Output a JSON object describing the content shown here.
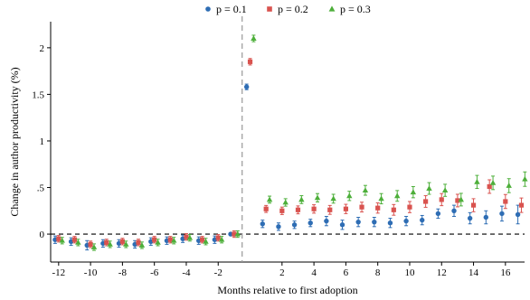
{
  "chart_data": {
    "type": "scatter",
    "title": "",
    "xlabel": "Months relative to first adoption",
    "ylabel": "Change in author productivity (%)",
    "xlim": [
      -12.5,
      17.2
    ],
    "ylim": [
      -0.3,
      2.28
    ],
    "x_ticks": [
      -12,
      -10,
      -8,
      -6,
      -4,
      -2,
      2,
      4,
      6,
      8,
      10,
      12,
      14,
      16
    ],
    "x_tick_labels": [
      "-12",
      "-10",
      "-8",
      "-6",
      "-4",
      "-2",
      "2",
      "4",
      "6",
      "8",
      "10",
      "12",
      "14",
      "16"
    ],
    "y_ticks": [
      0,
      0.5,
      1,
      1.5,
      2
    ],
    "y_tick_labels": [
      "0",
      ".5",
      "1",
      "1.5",
      "2"
    ],
    "reference_lines": {
      "horizontal_y": 0,
      "vertical_x": -0.5
    },
    "grid": false,
    "legend_position": "top-center",
    "error_bars": true,
    "series": [
      {
        "name": "p = 0.1",
        "color": "#2E6DB4",
        "marker": "circle",
        "x": [
          -12,
          -11,
          -10,
          -9,
          -8,
          -7,
          -6,
          -5,
          -4,
          -3,
          -2,
          -1,
          0,
          1,
          2,
          3,
          4,
          5,
          6,
          7,
          8,
          9,
          10,
          11,
          12,
          13,
          14,
          15,
          16,
          17
        ],
        "y": [
          -0.06,
          -0.08,
          -0.12,
          -0.1,
          -0.1,
          -0.11,
          -0.08,
          -0.07,
          -0.05,
          -0.07,
          -0.06,
          0,
          1.58,
          0.11,
          0.08,
          0.1,
          0.12,
          0.14,
          0.1,
          0.13,
          0.13,
          0.12,
          0.14,
          0.15,
          0.22,
          0.25,
          0.17,
          0.18,
          0.22,
          0.21
        ],
        "err": [
          0.04,
          0.04,
          0.05,
          0.04,
          0.04,
          0.04,
          0.04,
          0.04,
          0.04,
          0.04,
          0.04,
          0,
          0.03,
          0.04,
          0.04,
          0.04,
          0.04,
          0.05,
          0.05,
          0.05,
          0.05,
          0.05,
          0.05,
          0.05,
          0.05,
          0.06,
          0.06,
          0.07,
          0.08,
          0.1
        ]
      },
      {
        "name": "p = 0.2",
        "color": "#D9534F",
        "marker": "square",
        "x": [
          -12,
          -11,
          -10,
          -9,
          -8,
          -7,
          -6,
          -5,
          -4,
          -3,
          -2,
          -1,
          0,
          1,
          2,
          3,
          4,
          5,
          6,
          7,
          8,
          9,
          10,
          11,
          12,
          13,
          14,
          15,
          16,
          17
        ],
        "y": [
          -0.05,
          -0.06,
          -0.11,
          -0.09,
          -0.08,
          -0.09,
          -0.06,
          -0.06,
          -0.03,
          -0.06,
          -0.04,
          0,
          1.85,
          0.27,
          0.25,
          0.26,
          0.27,
          0.26,
          0.27,
          0.29,
          0.28,
          0.26,
          0.29,
          0.35,
          0.37,
          0.36,
          0.31,
          0.51,
          0.35,
          0.31
        ]
      },
      {
        "name": "p = 0.3",
        "color": "#4DAF3A",
        "marker": "triangle",
        "x": [
          -12,
          -11,
          -10,
          -9,
          -8,
          -7,
          -6,
          -5,
          -4,
          -3,
          -2,
          -1,
          0,
          1,
          2,
          3,
          4,
          5,
          6,
          7,
          8,
          9,
          10,
          11,
          12,
          13,
          14,
          15,
          16,
          17
        ],
        "y": [
          -0.07,
          -0.09,
          -0.14,
          -0.11,
          -0.11,
          -0.12,
          -0.09,
          -0.07,
          -0.04,
          -0.08,
          -0.06,
          0,
          2.1,
          0.37,
          0.34,
          0.37,
          0.39,
          0.38,
          0.41,
          0.47,
          0.38,
          0.41,
          0.45,
          0.49,
          0.47,
          0.37,
          0.56,
          0.55,
          0.52,
          0.59
        ]
      }
    ]
  }
}
